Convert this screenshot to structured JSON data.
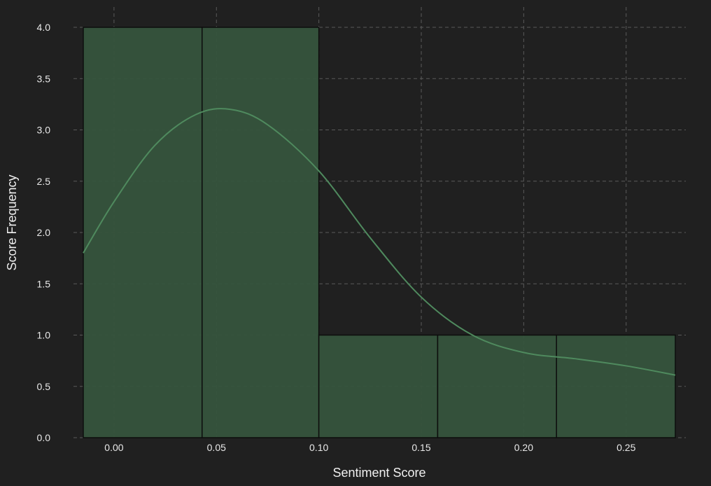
{
  "colors": {
    "background": "#202020",
    "bar_fill": "#36543d",
    "kde_line": "#4f8a5e",
    "text": "#e8e8e8"
  },
  "chart_data": {
    "type": "bar",
    "subtype": "histogram-with-kde",
    "xlabel": "Sentiment Score",
    "ylabel": "Score Frequency",
    "xlim": [
      -0.015,
      0.274
    ],
    "ylim": [
      0,
      4
    ],
    "grid": true,
    "x_ticks": [
      0.0,
      0.05,
      0.1,
      0.15,
      0.2,
      0.25
    ],
    "x_tick_labels": [
      "0.00",
      "0.05",
      "0.10",
      "0.15",
      "0.20",
      "0.25"
    ],
    "y_ticks": [
      0.0,
      0.5,
      1.0,
      1.5,
      2.0,
      2.5,
      3.0,
      3.5,
      4.0
    ],
    "y_tick_labels": [
      "0.0",
      "0.5",
      "1.0",
      "1.5",
      "2.0",
      "2.5",
      "3.0",
      "3.5",
      "4.0"
    ],
    "bins": [
      {
        "x0": -0.015,
        "x1": 0.043,
        "count": 4
      },
      {
        "x0": 0.043,
        "x1": 0.1,
        "count": 4
      },
      {
        "x0": 0.1,
        "x1": 0.158,
        "count": 1
      },
      {
        "x0": 0.158,
        "x1": 0.216,
        "count": 1
      },
      {
        "x0": 0.216,
        "x1": 0.274,
        "count": 1
      }
    ],
    "kde": {
      "x": [
        -0.015,
        0.0,
        0.02,
        0.04,
        0.057,
        0.075,
        0.1,
        0.125,
        0.15,
        0.175,
        0.2,
        0.225,
        0.25,
        0.274
      ],
      "y": [
        1.8,
        2.3,
        2.85,
        3.15,
        3.2,
        3.05,
        2.6,
        1.95,
        1.37,
        1.0,
        0.83,
        0.77,
        0.7,
        0.61
      ]
    }
  }
}
